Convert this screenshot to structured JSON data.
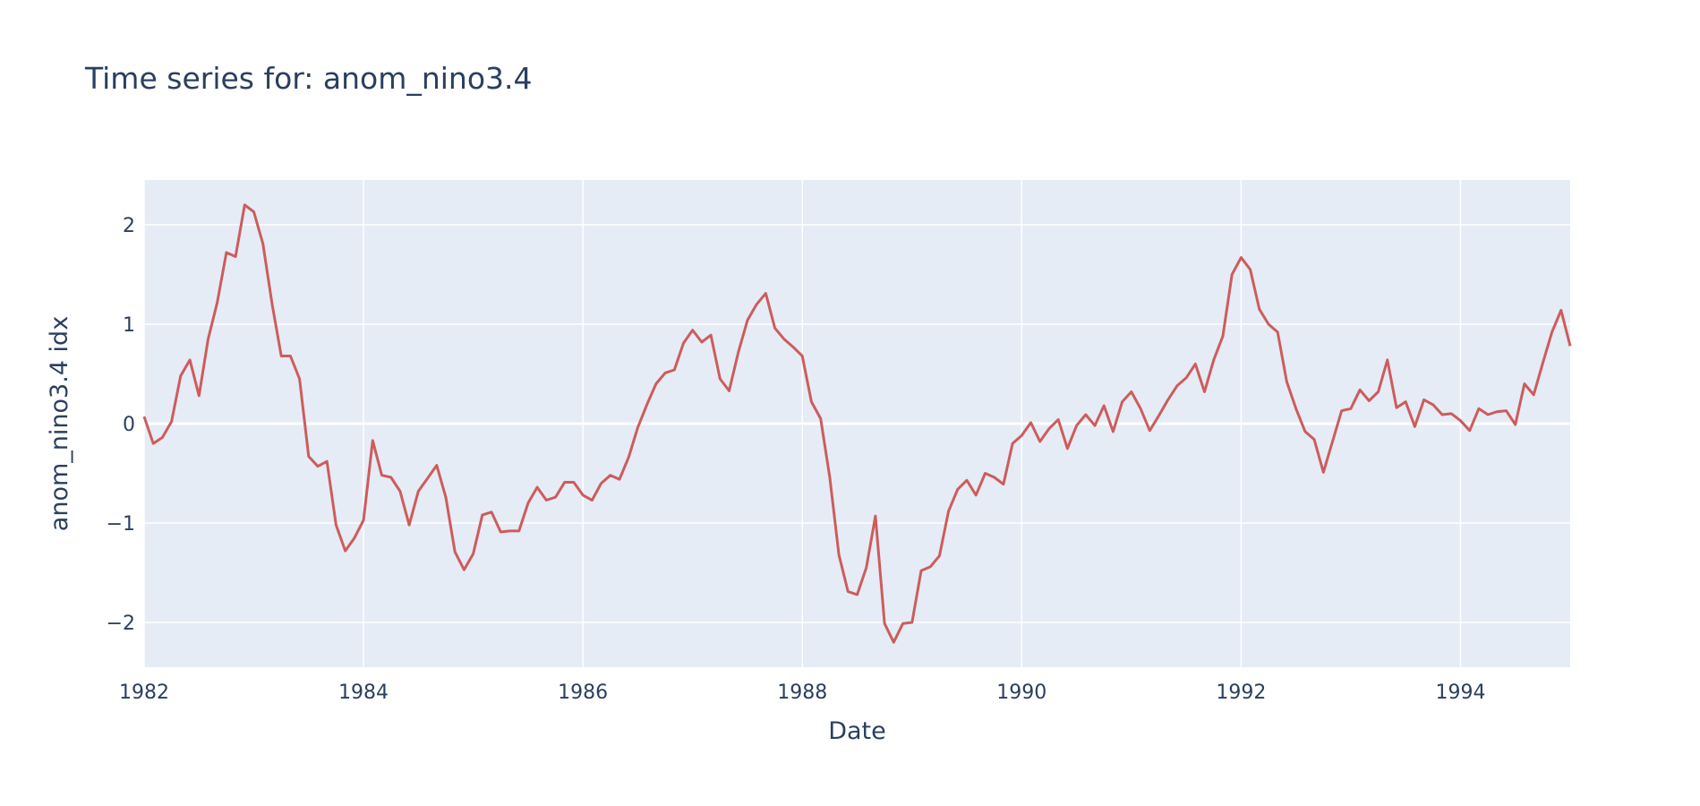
{
  "chart_data": {
    "type": "line",
    "title": "Time series for: anom_nino3.4",
    "xlabel": "Date",
    "ylabel": "anom_nino3.4 idx",
    "x_tick_labels": [
      "1982",
      "1984",
      "1986",
      "1988",
      "1990",
      "1992",
      "1994"
    ],
    "y_tick_labels": [
      "−2",
      "−1",
      "0",
      "1",
      "2"
    ],
    "y_tick_values": [
      -2,
      -1,
      0,
      1,
      2
    ],
    "xlim": [
      "1982-01",
      "1995-01"
    ],
    "ylim": [
      -2.45,
      2.45
    ],
    "grid": true,
    "colors": {
      "background": "#e5ecf6",
      "grid": "#ffffff",
      "line": "#cd5c5c",
      "text": "#2a3f5f"
    },
    "series": [
      {
        "x_start": "1982-01",
        "frequency": "monthly",
        "values": [
          0.07,
          -0.2,
          -0.14,
          0.02,
          0.48,
          0.64,
          0.28,
          0.85,
          1.22,
          1.72,
          1.68,
          2.2,
          2.13,
          1.81,
          1.2,
          0.68,
          0.68,
          0.45,
          -0.33,
          -0.43,
          -0.38,
          -1.02,
          -1.28,
          -1.15,
          -0.97,
          -0.17,
          -0.52,
          -0.54,
          -0.68,
          -1.02,
          -0.68,
          -0.55,
          -0.42,
          -0.74,
          -1.29,
          -1.47,
          -1.31,
          -0.92,
          -0.89,
          -1.09,
          -1.08,
          -1.08,
          -0.8,
          -0.64,
          -0.77,
          -0.74,
          -0.59,
          -0.59,
          -0.72,
          -0.77,
          -0.6,
          -0.52,
          -0.56,
          -0.34,
          -0.04,
          0.19,
          0.4,
          0.51,
          0.54,
          0.81,
          0.94,
          0.82,
          0.89,
          0.45,
          0.33,
          0.72,
          1.04,
          1.2,
          1.31,
          0.96,
          0.85,
          0.77,
          0.68,
          0.22,
          0.05,
          -0.54,
          -1.32,
          -1.69,
          -1.72,
          -1.45,
          -0.93,
          -2.01,
          -2.2,
          -2.01,
          -2.0,
          -1.48,
          -1.44,
          -1.33,
          -0.88,
          -0.66,
          -0.57,
          -0.72,
          -0.5,
          -0.54,
          -0.61,
          -0.2,
          -0.12,
          0.01,
          -0.18,
          -0.05,
          0.04,
          -0.25,
          -0.02,
          0.09,
          -0.02,
          0.18,
          -0.08,
          0.22,
          0.32,
          0.15,
          -0.07,
          0.08,
          0.24,
          0.38,
          0.46,
          0.6,
          0.32,
          0.64,
          0.88,
          1.5,
          1.67,
          1.55,
          1.15,
          1.0,
          0.92,
          0.42,
          0.15,
          -0.08,
          -0.16,
          -0.49,
          -0.18,
          0.13,
          0.15,
          0.34,
          0.23,
          0.32,
          0.64,
          0.16,
          0.22,
          -0.03,
          0.24,
          0.19,
          0.09,
          0.1,
          0.03,
          -0.07,
          0.15,
          0.09,
          0.12,
          0.13,
          -0.01,
          0.4,
          0.29,
          0.61,
          0.92,
          1.14,
          0.78
        ]
      }
    ]
  }
}
